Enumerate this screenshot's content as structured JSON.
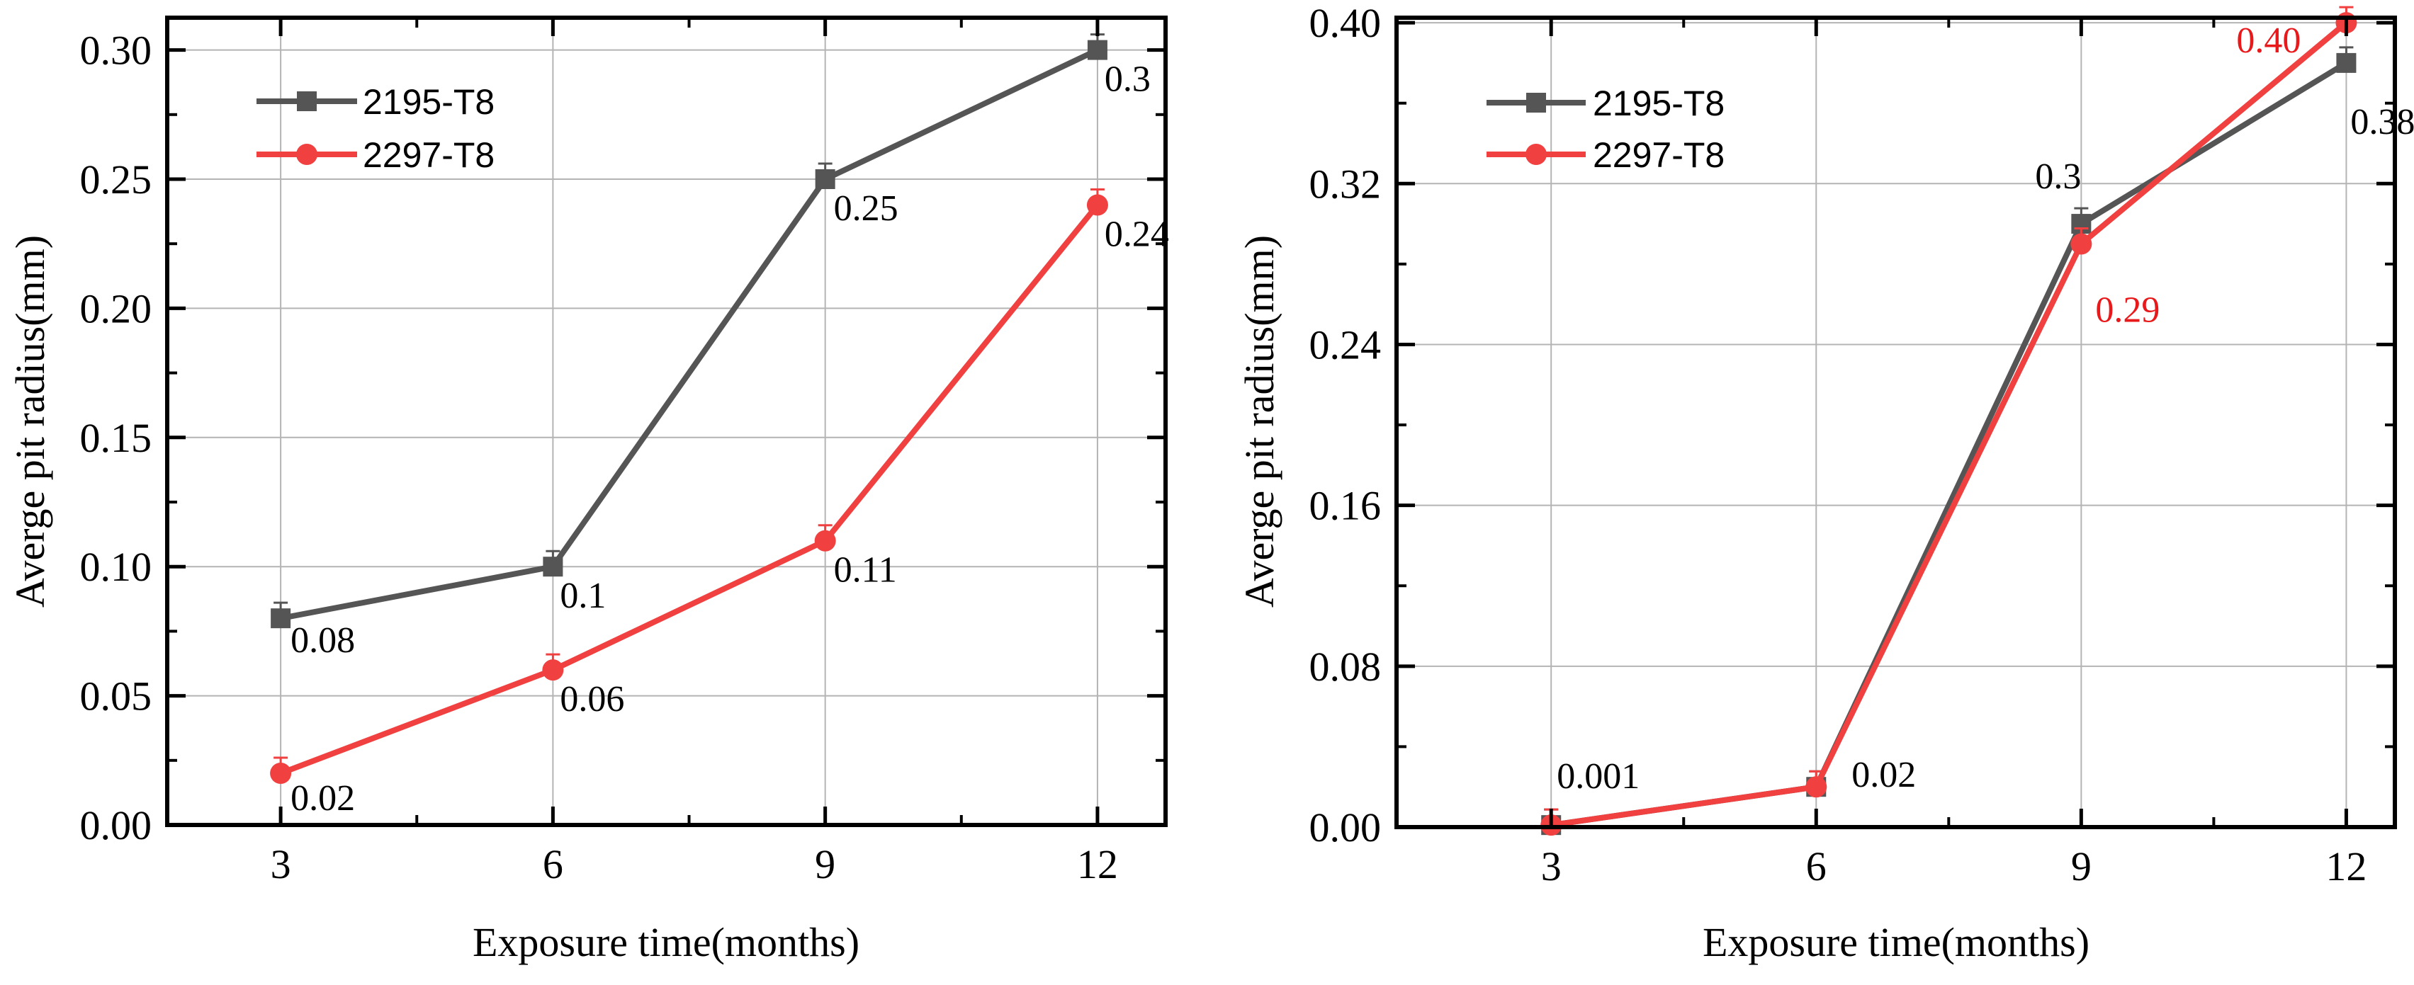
{
  "chart_data": [
    {
      "type": "line",
      "xlabel": "Exposure time(months)",
      "ylabel": "Averge pit radius(mm)",
      "categories": [
        3,
        6,
        9,
        12
      ],
      "x_ticks": [
        "3",
        "6",
        "9",
        "12"
      ],
      "xlim": [
        1.75,
        12.75
      ],
      "ylim": [
        0,
        0.3125
      ],
      "y_ticks": [
        "0.00",
        "0.05",
        "0.10",
        "0.15",
        "0.20",
        "0.25",
        "0.30"
      ],
      "legend_position": "top-left",
      "grid": true,
      "series": [
        {
          "name": "2195-T8",
          "marker": "square",
          "color": "#555555",
          "values": [
            0.08,
            0.1,
            0.25,
            0.3
          ],
          "labels": [
            "0.08",
            "0.1",
            "0.25",
            "0.3"
          ],
          "label_color": "#000000"
        },
        {
          "name": "2297-T8",
          "marker": "circle",
          "color": "#f04040",
          "values": [
            0.02,
            0.06,
            0.11,
            0.24
          ],
          "labels": [
            "0.02",
            "0.06",
            "0.11",
            "0.24"
          ],
          "label_color": "#000000"
        }
      ]
    },
    {
      "type": "line",
      "xlabel": "Exposure time(months)",
      "ylabel": "Averge pit radius(mm)",
      "categories": [
        3,
        6,
        9,
        12
      ],
      "x_ticks": [
        "3",
        "6",
        "9",
        "12"
      ],
      "xlim": [
        1.25,
        12.55
      ],
      "ylim": [
        0,
        0.4025
      ],
      "y_ticks": [
        "0.00",
        "0.08",
        "0.16",
        "0.24",
        "0.32",
        "0.40"
      ],
      "legend_position": "top-left",
      "grid": true,
      "series": [
        {
          "name": "2195-T8",
          "marker": "square",
          "color": "#555555",
          "values": [
            0.001,
            0.02,
            0.3,
            0.38
          ],
          "labels": [
            "0.001",
            "0.02",
            "0.3",
            "0.38"
          ],
          "label_color": "#000000"
        },
        {
          "name": "2297-T8",
          "marker": "circle",
          "color": "#f04040",
          "values": [
            0.001,
            0.02,
            0.29,
            0.4
          ],
          "labels": [
            "",
            "",
            "0.29",
            "0.40"
          ],
          "label_color": "#e8191b"
        }
      ]
    }
  ]
}
